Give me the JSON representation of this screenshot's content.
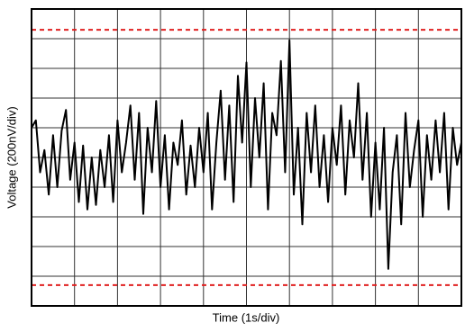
{
  "chart_data": {
    "type": "line",
    "xlabel": "Time (1s/div)",
    "ylabel": "Voltage (200nV/div)",
    "x": [
      0,
      0.1,
      0.2,
      0.3,
      0.4,
      0.5,
      0.6,
      0.7,
      0.8,
      0.9,
      1,
      1.1,
      1.2,
      1.3,
      1.4,
      1.5,
      1.6,
      1.7,
      1.8,
      1.9,
      2,
      2.1,
      2.2,
      2.3,
      2.4,
      2.5,
      2.6,
      2.7,
      2.8,
      2.9,
      3,
      3.1,
      3.2,
      3.3,
      3.4,
      3.5,
      3.6,
      3.7,
      3.8,
      3.9,
      4,
      4.1,
      4.2,
      4.3,
      4.4,
      4.5,
      4.6,
      4.7,
      4.8,
      4.9,
      5,
      5.1,
      5.2,
      5.3,
      5.4,
      5.5,
      5.6,
      5.7,
      5.8,
      5.9,
      6,
      6.1,
      6.2,
      6.3,
      6.4,
      6.5,
      6.6,
      6.7,
      6.8,
      6.9,
      7,
      7.1,
      7.2,
      7.3,
      7.4,
      7.5,
      7.6,
      7.7,
      7.8,
      7.9,
      8,
      8.1,
      8.2,
      8.3,
      8.4,
      8.5,
      8.6,
      8.7,
      8.8,
      8.9,
      9,
      9.1,
      9.2,
      9.3,
      9.4,
      9.5,
      9.6,
      9.7,
      9.8,
      9.9,
      10
    ],
    "values": [
      200,
      250,
      -100,
      50,
      -250,
      150,
      -200,
      180,
      320,
      -150,
      100,
      -300,
      80,
      -350,
      0,
      -320,
      50,
      -200,
      150,
      -300,
      250,
      -100,
      100,
      350,
      -150,
      300,
      -380,
      200,
      -100,
      380,
      -200,
      150,
      -350,
      100,
      -50,
      250,
      -250,
      80,
      -200,
      200,
      -100,
      300,
      -350,
      100,
      450,
      -150,
      350,
      -300,
      550,
      100,
      640,
      -200,
      400,
      0,
      500,
      -350,
      300,
      150,
      650,
      -100,
      790,
      -250,
      200,
      -450,
      300,
      -100,
      350,
      -200,
      150,
      -300,
      200,
      -50,
      350,
      -250,
      250,
      0,
      500,
      -150,
      300,
      -400,
      100,
      -350,
      200,
      -750,
      -100,
      150,
      -450,
      300,
      -200,
      50,
      250,
      -400,
      150,
      -150,
      250,
      -100,
      300,
      -350,
      200,
      -50,
      100
    ],
    "color": "#000000",
    "xlim": [
      0,
      10
    ],
    "xticks": [
      0,
      1,
      2,
      3,
      4,
      5,
      6,
      7,
      8,
      9,
      10
    ],
    "ylim": [
      -1000,
      1000
    ],
    "yticks": [
      -1000,
      -800,
      -600,
      -400,
      -200,
      0,
      200,
      400,
      600,
      800,
      1000
    ],
    "grid": true,
    "reference_lines": {
      "values": [
        860,
        -860
      ],
      "color": "#e02020"
    }
  }
}
